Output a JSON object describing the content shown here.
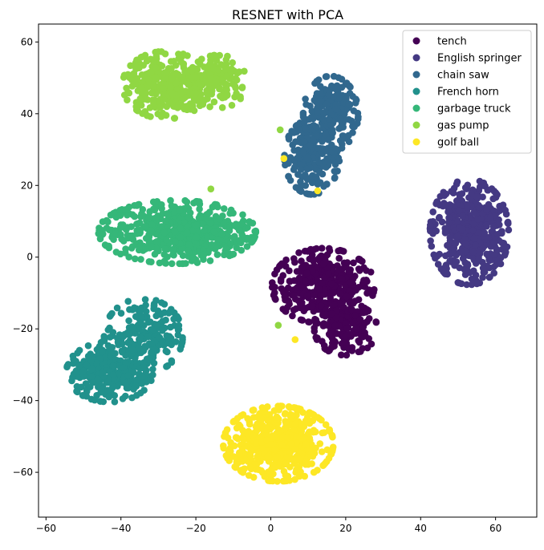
{
  "chart_data": {
    "type": "scatter",
    "title": "RESNET with PCA",
    "xlabel": "",
    "ylabel": "",
    "xlim": [
      -62,
      71
    ],
    "ylim": [
      -72.5,
      65
    ],
    "xticks": [
      -60,
      -40,
      -20,
      0,
      20,
      40,
      60
    ],
    "yticks": [
      -60,
      -40,
      -20,
      0,
      20,
      40,
      60
    ],
    "grid": false,
    "legend_position": "top-right",
    "series": [
      {
        "name": "tench",
        "color": "#440154",
        "clusters": [
          {
            "cx": 14,
            "cy": -8,
            "sx": 6.5,
            "sy": 5,
            "n": 380
          },
          {
            "cx": 20,
            "cy": -20,
            "sx": 4,
            "sy": 3.5,
            "n": 160
          }
        ]
      },
      {
        "name": "English springer",
        "color": "#443983",
        "clusters": [
          {
            "cx": 53,
            "cy": 7,
            "sx": 5,
            "sy": 7,
            "n": 460
          }
        ]
      },
      {
        "name": "chain saw",
        "color": "#31688e",
        "clusters": [
          {
            "cx": 11,
            "cy": 28,
            "sx": 3.5,
            "sy": 5,
            "n": 200
          },
          {
            "cx": 16,
            "cy": 40,
            "sx": 3.5,
            "sy": 5,
            "n": 220
          }
        ]
      },
      {
        "name": "French horn",
        "color": "#21918c",
        "clusters": [
          {
            "cx": -34,
            "cy": -22,
            "sx": 5,
            "sy": 5,
            "n": 220
          },
          {
            "cx": -43,
            "cy": -32,
            "sx": 5.5,
            "sy": 4,
            "n": 260
          }
        ]
      },
      {
        "name": "garbage truck",
        "color": "#35b779",
        "clusters": [
          {
            "cx": -25,
            "cy": 7,
            "sx": 10,
            "sy": 4.2,
            "n": 560
          }
        ]
      },
      {
        "name": "gas pump",
        "color": "#90d743",
        "clusters": [
          {
            "cx": -28,
            "cy": 48,
            "sx": 5.5,
            "sy": 4.5,
            "n": 300
          },
          {
            "cx": -14,
            "cy": 49,
            "sx": 4,
            "sy": 3.5,
            "n": 140
          }
        ],
        "outliers": [
          [
            -16,
            19
          ],
          [
            2,
            -19
          ],
          [
            2.5,
            35.5
          ]
        ]
      },
      {
        "name": "golf ball",
        "color": "#fde725",
        "clusters": [
          {
            "cx": 2,
            "cy": -52,
            "sx": 7,
            "sy": 5,
            "n": 520
          }
        ],
        "outliers": [
          [
            3.5,
            27.5
          ],
          [
            12.5,
            18.5
          ],
          [
            6.5,
            -23
          ]
        ]
      }
    ]
  }
}
